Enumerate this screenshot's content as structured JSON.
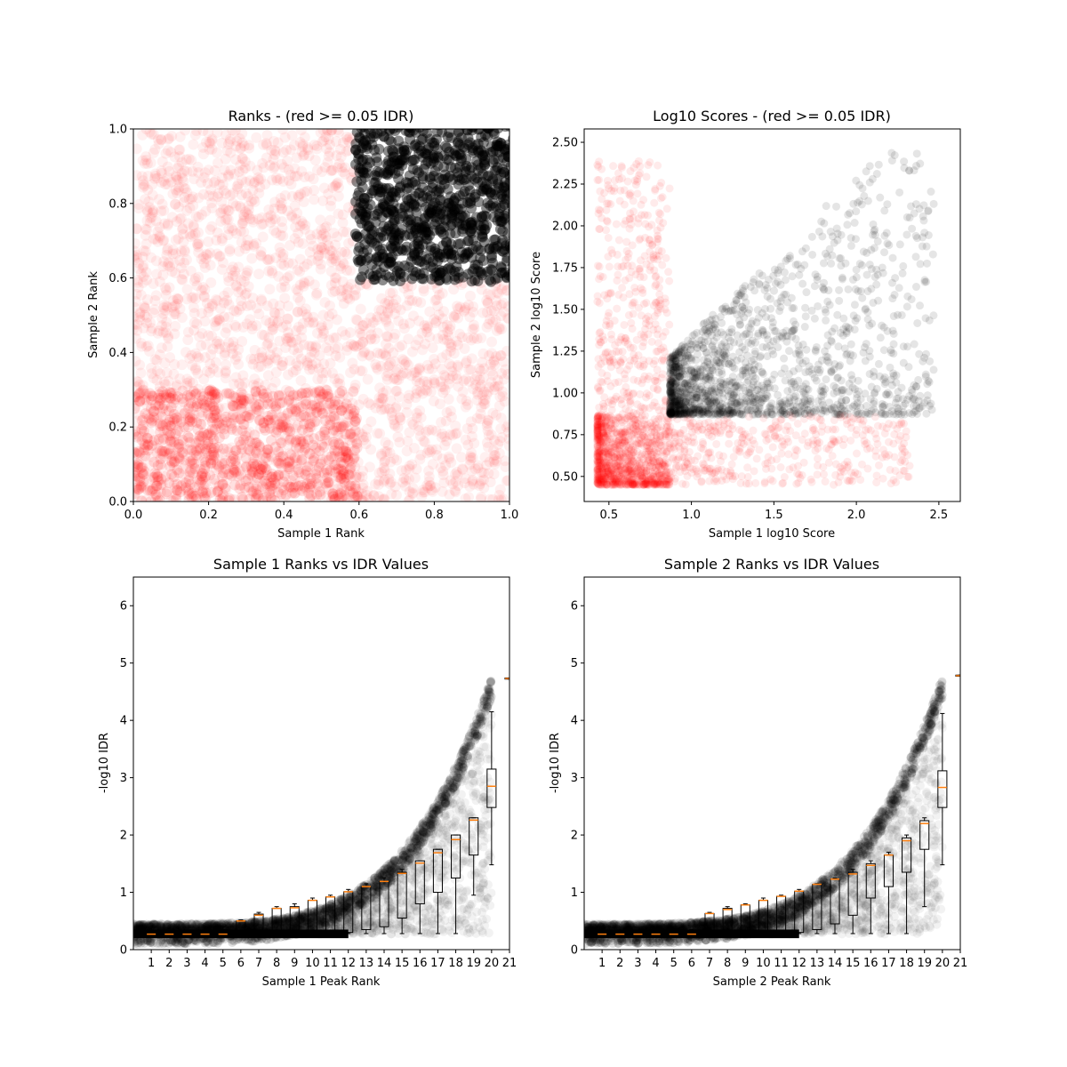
{
  "chart_data": [
    {
      "type": "scatter",
      "title": "Ranks - (red >= 0.05 IDR)",
      "xlabel": "Sample 1 Rank",
      "ylabel": "Sample 2 Rank",
      "xlim": [
        0,
        1
      ],
      "ylim": [
        0,
        1
      ],
      "xticks": [
        "0.0",
        "0.2",
        "0.4",
        "0.6",
        "0.8",
        "1.0"
      ],
      "yticks": [
        "0.0",
        "0.2",
        "0.4",
        "0.6",
        "0.8",
        "1.0"
      ],
      "grid": false,
      "series": [
        {
          "color": "#ff0000",
          "description_points": "peaks with IDR >= 0.05 spread over whole rank square"
        },
        {
          "color": "#000000",
          "region": {
            "x_min": 0.59,
            "y_min": 0.59,
            "x_max": 1.0,
            "y_max": 1.0
          }
        }
      ]
    },
    {
      "type": "scatter",
      "title": "Log10 Scores - (red >= 0.05 IDR)",
      "xlabel": "Sample 1 log10 Score",
      "ylabel": "Sample 2 log10 Score",
      "xlim": [
        0.35,
        2.63
      ],
      "ylim": [
        0.35,
        2.58
      ],
      "xticks": [
        "0.5",
        "1.0",
        "1.5",
        "2.0",
        "2.5"
      ],
      "yticks": [
        "0.50",
        "0.75",
        "1.00",
        "1.25",
        "1.50",
        "1.75",
        "2.00",
        "2.25",
        "2.50"
      ],
      "grid": false,
      "series": [
        {
          "color": "#ff0000",
          "x_range": [
            0.43,
            2.42
          ],
          "y_range": [
            0.45,
            2.42
          ]
        },
        {
          "color": "#000000",
          "x_min": 0.87,
          "y_min": 0.87,
          "x_max": 2.55,
          "y_max": 2.47
        }
      ]
    },
    {
      "type": "box",
      "title": "Sample 1 Ranks vs IDR Values",
      "xlabel": "Sample 1 Peak Rank",
      "ylabel": "-log10 IDR",
      "xlim": [
        0,
        21
      ],
      "ylim": [
        0,
        6.5
      ],
      "xticks": [
        "1",
        "2",
        "3",
        "4",
        "5",
        "6",
        "7",
        "8",
        "9",
        "10",
        "11",
        "12",
        "13",
        "14",
        "15",
        "16",
        "17",
        "18",
        "19",
        "20",
        "21"
      ],
      "yticks": [
        "0",
        "1",
        "2",
        "3",
        "4",
        "5",
        "6"
      ],
      "medians": [
        0.27,
        0.27,
        0.27,
        0.27,
        0.27,
        0.5,
        0.6,
        0.72,
        0.73,
        0.86,
        0.92,
        1.01,
        1.1,
        1.19,
        1.33,
        1.51,
        1.69,
        1.92,
        2.26,
        2.85,
        4.73
      ],
      "q1": [
        0.25,
        0.25,
        0.25,
        0.25,
        0.25,
        0.3,
        0.3,
        0.3,
        0.3,
        0.3,
        0.3,
        0.3,
        0.35,
        0.4,
        0.55,
        0.8,
        1.0,
        1.25,
        1.65,
        2.48,
        4.72
      ],
      "q3": [
        0.3,
        0.3,
        0.3,
        0.3,
        0.35,
        0.5,
        0.62,
        0.72,
        0.75,
        0.86,
        0.92,
        1.01,
        1.1,
        1.19,
        1.35,
        1.55,
        1.75,
        2.0,
        2.3,
        3.15,
        4.74
      ],
      "whisker_low": [
        0.25,
        0.25,
        0.25,
        0.25,
        0.25,
        0.28,
        0.28,
        0.28,
        0.28,
        0.28,
        0.28,
        0.28,
        0.28,
        0.28,
        0.28,
        0.28,
        0.28,
        0.28,
        0.95,
        1.48,
        4.72
      ],
      "whisker_high": [
        0.3,
        0.3,
        0.3,
        0.3,
        0.4,
        0.52,
        0.65,
        0.75,
        0.8,
        0.9,
        0.95,
        1.05,
        1.15,
        1.25,
        1.4,
        1.55,
        1.75,
        2.0,
        2.3,
        4.15,
        4.74
      ]
    },
    {
      "type": "box",
      "title": "Sample 2 Ranks vs IDR Values",
      "xlabel": "Sample 2 Peak Rank",
      "ylabel": "-log10 IDR",
      "xlim": [
        0,
        21
      ],
      "ylim": [
        0,
        6.5
      ],
      "xticks": [
        "1",
        "2",
        "3",
        "4",
        "5",
        "6",
        "7",
        "8",
        "9",
        "10",
        "11",
        "12",
        "13",
        "14",
        "15",
        "16",
        "17",
        "18",
        "19",
        "20",
        "21"
      ],
      "yticks": [
        "0",
        "1",
        "2",
        "3",
        "4",
        "5",
        "6"
      ],
      "medians": [
        0.27,
        0.27,
        0.27,
        0.27,
        0.27,
        0.27,
        0.63,
        0.7,
        0.78,
        0.86,
        0.93,
        1.02,
        1.14,
        1.23,
        1.32,
        1.47,
        1.65,
        1.9,
        2.2,
        2.83,
        4.78
      ],
      "q1": [
        0.25,
        0.25,
        0.25,
        0.25,
        0.25,
        0.25,
        0.3,
        0.3,
        0.3,
        0.3,
        0.3,
        0.3,
        0.35,
        0.45,
        0.6,
        0.9,
        1.1,
        1.35,
        1.75,
        2.48,
        4.77
      ],
      "q3": [
        0.3,
        0.3,
        0.3,
        0.3,
        0.3,
        0.32,
        0.63,
        0.72,
        0.78,
        0.86,
        0.93,
        1.02,
        1.14,
        1.23,
        1.35,
        1.5,
        1.65,
        1.95,
        2.25,
        3.12,
        4.79
      ],
      "whisker_low": [
        0.25,
        0.25,
        0.25,
        0.25,
        0.25,
        0.25,
        0.28,
        0.28,
        0.28,
        0.28,
        0.28,
        0.28,
        0.28,
        0.28,
        0.28,
        0.28,
        0.28,
        0.28,
        0.75,
        1.48,
        4.77
      ],
      "whisker_high": [
        0.3,
        0.3,
        0.3,
        0.3,
        0.3,
        0.35,
        0.65,
        0.75,
        0.8,
        0.9,
        0.95,
        1.05,
        1.15,
        1.25,
        1.4,
        1.55,
        1.7,
        2.0,
        2.3,
        4.12,
        4.79
      ]
    }
  ]
}
